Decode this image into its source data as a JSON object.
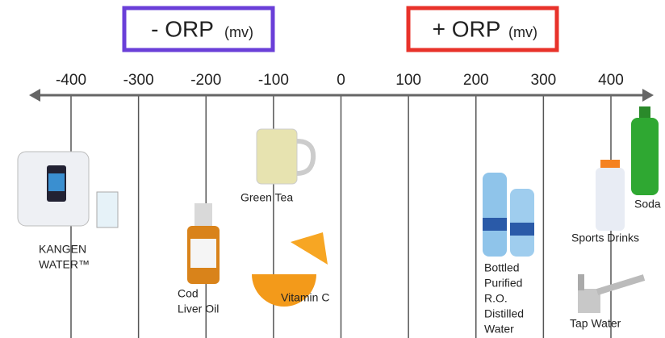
{
  "header": {
    "negative": {
      "title": "- ORP",
      "unit": "(mv)"
    },
    "positive": {
      "title": "+ ORP",
      "unit": "(mv)"
    }
  },
  "axis": {
    "ticks": [
      -400,
      -300,
      -200,
      -100,
      0,
      100,
      200,
      300,
      400
    ]
  },
  "items": [
    {
      "lines": [
        "KANGEN",
        "WATER™"
      ]
    },
    {
      "lines": [
        "Cod",
        "Liver Oil"
      ]
    },
    {
      "lines": [
        "Green Tea"
      ]
    },
    {
      "lines": [
        "Vitamin C"
      ]
    },
    {
      "lines": [
        "Bottled",
        "Purified",
        "R.O.",
        "Distilled",
        "Water"
      ]
    },
    {
      "lines": [
        "Sports Drinks"
      ]
    },
    {
      "lines": [
        "Soda"
      ]
    },
    {
      "lines": [
        "Tap Water"
      ]
    }
  ]
}
